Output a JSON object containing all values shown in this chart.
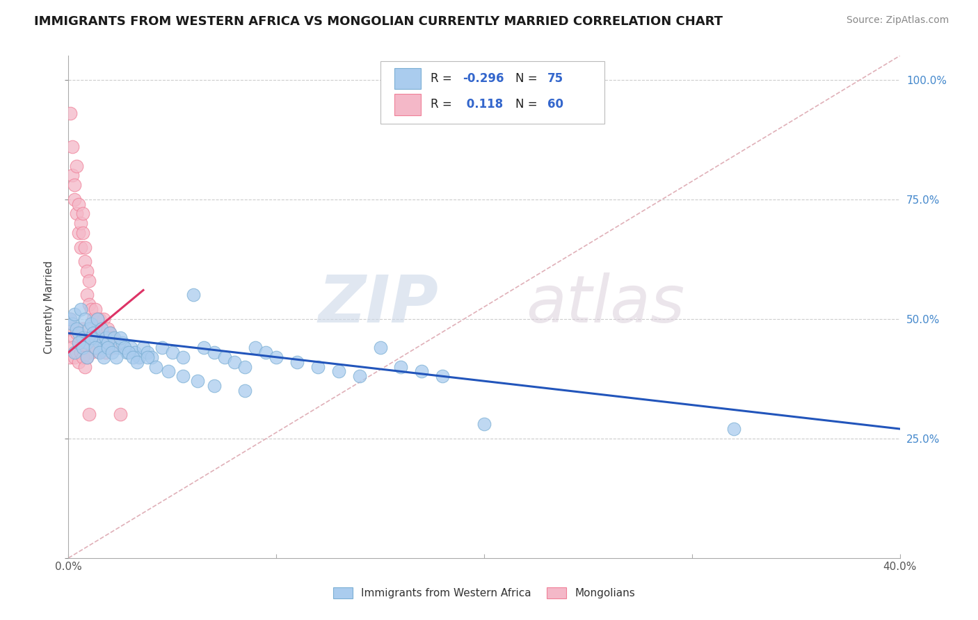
{
  "title": "IMMIGRANTS FROM WESTERN AFRICA VS MONGOLIAN CURRENTLY MARRIED CORRELATION CHART",
  "source": "Source: ZipAtlas.com",
  "ylabel": "Currently Married",
  "xlim": [
    0.0,
    0.4
  ],
  "ylim": [
    0.0,
    1.05
  ],
  "title_fontsize": 13,
  "blue_color": "#7bafd4",
  "pink_color": "#f08098",
  "blue_fill": "#aaccee",
  "pink_fill": "#f4b8c8",
  "trend_blue": "#2255bb",
  "trend_pink": "#dd3366",
  "diag_color": "#e0b0b8",
  "marker_size": 180,
  "blue_scatter_x": [
    0.001,
    0.002,
    0.003,
    0.004,
    0.005,
    0.006,
    0.007,
    0.008,
    0.009,
    0.01,
    0.011,
    0.012,
    0.013,
    0.014,
    0.015,
    0.016,
    0.017,
    0.018,
    0.019,
    0.02,
    0.022,
    0.024,
    0.026,
    0.028,
    0.03,
    0.032,
    0.034,
    0.036,
    0.038,
    0.04,
    0.045,
    0.05,
    0.055,
    0.06,
    0.065,
    0.07,
    0.075,
    0.08,
    0.085,
    0.09,
    0.095,
    0.1,
    0.11,
    0.12,
    0.13,
    0.14,
    0.15,
    0.16,
    0.17,
    0.18,
    0.003,
    0.005,
    0.007,
    0.009,
    0.011,
    0.013,
    0.015,
    0.017,
    0.019,
    0.021,
    0.023,
    0.025,
    0.027,
    0.029,
    0.031,
    0.033,
    0.038,
    0.042,
    0.048,
    0.055,
    0.062,
    0.07,
    0.085,
    0.2,
    0.32
  ],
  "blue_scatter_y": [
    0.5,
    0.49,
    0.51,
    0.48,
    0.47,
    0.52,
    0.46,
    0.5,
    0.45,
    0.48,
    0.49,
    0.47,
    0.46,
    0.5,
    0.45,
    0.48,
    0.44,
    0.46,
    0.45,
    0.47,
    0.46,
    0.44,
    0.45,
    0.43,
    0.44,
    0.43,
    0.42,
    0.44,
    0.43,
    0.42,
    0.44,
    0.43,
    0.42,
    0.55,
    0.44,
    0.43,
    0.42,
    0.41,
    0.4,
    0.44,
    0.43,
    0.42,
    0.41,
    0.4,
    0.39,
    0.38,
    0.44,
    0.4,
    0.39,
    0.38,
    0.43,
    0.45,
    0.44,
    0.42,
    0.46,
    0.44,
    0.43,
    0.42,
    0.44,
    0.43,
    0.42,
    0.46,
    0.44,
    0.43,
    0.42,
    0.41,
    0.42,
    0.4,
    0.39,
    0.38,
    0.37,
    0.36,
    0.35,
    0.28,
    0.27
  ],
  "pink_scatter_x": [
    0.001,
    0.002,
    0.002,
    0.003,
    0.003,
    0.004,
    0.004,
    0.005,
    0.005,
    0.006,
    0.006,
    0.007,
    0.007,
    0.008,
    0.008,
    0.009,
    0.009,
    0.01,
    0.01,
    0.011,
    0.012,
    0.013,
    0.014,
    0.015,
    0.016,
    0.017,
    0.018,
    0.019,
    0.02,
    0.021,
    0.001,
    0.002,
    0.003,
    0.004,
    0.005,
    0.006,
    0.007,
    0.008,
    0.009,
    0.01,
    0.011,
    0.012,
    0.013,
    0.014,
    0.015,
    0.016,
    0.018,
    0.02,
    0.022,
    0.025,
    0.001,
    0.002,
    0.003,
    0.004,
    0.005,
    0.006,
    0.007,
    0.008,
    0.009,
    0.01
  ],
  "pink_scatter_y": [
    0.93,
    0.86,
    0.8,
    0.78,
    0.75,
    0.72,
    0.82,
    0.68,
    0.74,
    0.7,
    0.65,
    0.72,
    0.68,
    0.65,
    0.62,
    0.6,
    0.55,
    0.58,
    0.53,
    0.52,
    0.5,
    0.52,
    0.48,
    0.5,
    0.47,
    0.5,
    0.46,
    0.48,
    0.47,
    0.46,
    0.5,
    0.48,
    0.46,
    0.47,
    0.45,
    0.44,
    0.48,
    0.46,
    0.44,
    0.46,
    0.43,
    0.46,
    0.44,
    0.5,
    0.43,
    0.45,
    0.43,
    0.46,
    0.44,
    0.3,
    0.42,
    0.44,
    0.42,
    0.43,
    0.41,
    0.43,
    0.42,
    0.4,
    0.42,
    0.3
  ],
  "blue_line_x": [
    0.0,
    0.4
  ],
  "blue_line_y": [
    0.47,
    0.27
  ],
  "pink_line_x": [
    0.0,
    0.036
  ],
  "pink_line_y": [
    0.43,
    0.56
  ],
  "diag_line_x": [
    0.0,
    0.4
  ],
  "diag_line_y": [
    0.0,
    1.05
  ]
}
